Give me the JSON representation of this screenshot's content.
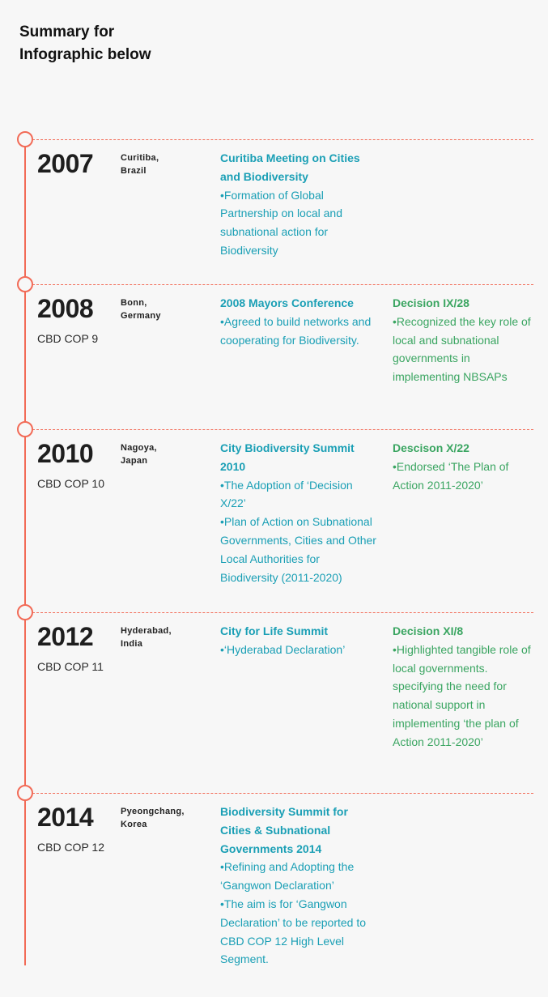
{
  "title": {
    "line1": "Summary for",
    "line2": "Infographic below"
  },
  "entries": [
    {
      "year": "2007",
      "location": "Curitiba,\nBrazil",
      "cop": "",
      "event": {
        "heading": "Curitiba Meeting on Cities and Biodiversity",
        "bullets": [
          "•Formation of Global Partnership on local and subnational action for Biodiversity"
        ]
      },
      "decision": {
        "heading": "",
        "bullets": []
      }
    },
    {
      "year": "2008",
      "location": "Bonn,\nGermany",
      "cop": "CBD COP 9",
      "event": {
        "heading": "2008 Mayors Conference",
        "bullets": [
          "•Agreed to build networks and cooperating for Biodiversity."
        ]
      },
      "decision": {
        "heading": "Decision IX/28",
        "bullets": [
          "•Recognized the key role of local and subnational governments in implementing NBSAPs"
        ]
      }
    },
    {
      "year": "2010",
      "location": "Nagoya,\nJapan",
      "cop": "CBD COP 10",
      "event": {
        "heading": "City Biodiversity Summit 2010",
        "bullets": [
          "•The Adoption of ‘Decision X/22’",
          "•Plan of Action on Subnational Governments, Cities and Other Local Authorities for Biodiversity (2011-2020)"
        ]
      },
      "decision": {
        "heading": "Descison X/22",
        "bullets": [
          "•Endorsed ‘The Plan of Action 2011-2020’"
        ]
      }
    },
    {
      "year": "2012",
      "location": "Hyderabad,\nIndia",
      "cop": "CBD COP 11",
      "event": {
        "heading": "City for Life Summit",
        "bullets": [
          "•‘Hyderabad Declaration’"
        ]
      },
      "decision": {
        "heading": "Decision XI/8",
        "bullets": [
          "•Highlighted tangible role of local governments. specifying the need for national support in implementing ‘the plan of Action 2011-2020’"
        ]
      }
    },
    {
      "year": "2014",
      "location": "Pyeongchang,\nKorea",
      "cop": "CBD COP 12",
      "event": {
        "heading": "Biodiversity Summit for Cities & Subnational Governments 2014",
        "bullets": [
          "•Refining and Adopting the ‘Gangwon Declaration’",
          "•The aim is for ‘Gangwon Declaration’ to be reported to CBD COP 12 High Level Segment."
        ]
      },
      "decision": {
        "heading": "",
        "bullets": []
      }
    }
  ],
  "colors": {
    "timeline": "#f26b57",
    "event_text": "#1a9fb5",
    "decision_text": "#3aa561",
    "background": "#f7f7f7"
  }
}
